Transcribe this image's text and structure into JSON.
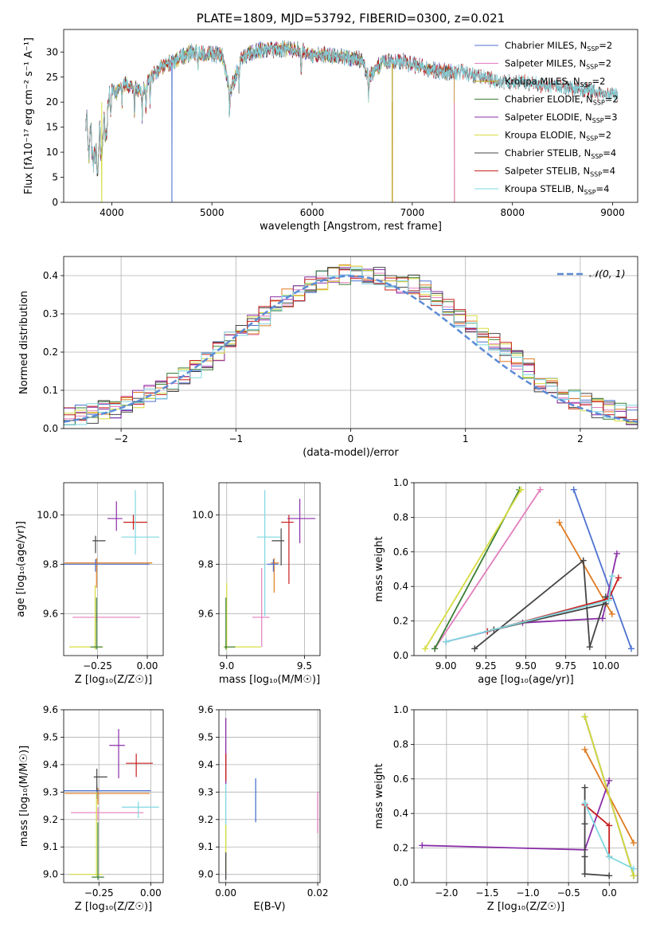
{
  "chart_data": [
    {
      "id": "spectrum",
      "type": "line",
      "title": "PLATE=1809, MJD=53792, FIBERID=0300, z=0.021",
      "xlabel": "wavelength [Angstrom, rest frame]",
      "ylabel": "Flux [fλ10⁻¹⁷ erg cm⁻² s⁻¹ A⁻¹]",
      "xlim": [
        3520,
        9250
      ],
      "ylim": [
        0,
        34.5
      ],
      "xticks": [
        4000,
        5000,
        6000,
        7000,
        8000,
        9000
      ],
      "yticks": [
        0,
        5,
        10,
        15,
        20,
        25,
        30
      ],
      "grid": false,
      "legend_position": "top-right",
      "spectrum_anchor_points": {
        "x": [
          3740,
          3800,
          3850,
          3900,
          3950,
          4000,
          4050,
          4100,
          4200,
          4300,
          4400,
          4500,
          4600,
          4700,
          4800,
          5000,
          5100,
          5180,
          5300,
          5500,
          5700,
          5900,
          6000,
          6100,
          6300,
          6500,
          6560,
          6700,
          6900,
          7100,
          7300,
          7500,
          7700,
          7900,
          8100,
          8300,
          8500,
          8700,
          8900,
          9000,
          9050
        ],
        "y": [
          14,
          12,
          9,
          13,
          17,
          23,
          22,
          24,
          23,
          22,
          25,
          27,
          28,
          29,
          30,
          29.5,
          29.5,
          22,
          29,
          30.5,
          30.5,
          30.5,
          29,
          29.5,
          29,
          28.5,
          25,
          28,
          28,
          27,
          26,
          26,
          25,
          24,
          24,
          23.5,
          23,
          22.5,
          22,
          21.5,
          21
        ]
      },
      "dropouts": [
        {
          "series": "Chabrier MILES, N_SSP=2",
          "x": 4600
        },
        {
          "series": "Kroupa MILES, N_SSP=2",
          "x": 6800
        },
        {
          "series": "Salpeter MILES, N_SSP=2",
          "x": 7420
        },
        {
          "series": "Kroupa ELODIE, N_SSP=2",
          "x": 3900
        }
      ],
      "series": [
        {
          "legend": "Chabrier MILES, N",
          "sub": "SSP",
          "suffix": "=2",
          "color": "#4c72d0",
          "end": 7420
        },
        {
          "legend": "Salpeter MILES, N",
          "sub": "SSP",
          "suffix": "=2",
          "color": "#e37dbd",
          "end": 7420
        },
        {
          "legend": "Kroupa MILES, N",
          "sub": "SSP",
          "suffix": "=2",
          "color": "#c39a06",
          "end": 7420
        },
        {
          "legend": "Chabrier ELODIE, N",
          "sub": "SSP",
          "suffix": "=2",
          "color": "#3a7e34",
          "end": 6800
        },
        {
          "legend": "Salpeter ELODIE, N",
          "sub": "SSP",
          "suffix": "=3",
          "color": "#8a2fa8",
          "end": 6800
        },
        {
          "legend": "Kroupa ELODIE, N",
          "sub": "SSP",
          "suffix": "=2",
          "color": "#d6dd3e",
          "end": 6800
        },
        {
          "legend": "Chabrier STELIB, N",
          "sub": "SSP",
          "suffix": "=4",
          "color": "#444444",
          "end": 9050
        },
        {
          "legend": "Salpeter STELIB, N",
          "sub": "SSP",
          "suffix": "=4",
          "color": "#c81e1e",
          "end": 9050
        },
        {
          "legend": "Kroupa STELIB, N",
          "sub": "SSP",
          "suffix": "=4",
          "color": "#7fd8e0",
          "end": 9050
        }
      ]
    },
    {
      "id": "residuals",
      "type": "line",
      "xlabel": "(data-model)/error",
      "ylabel": "Normed distribution",
      "xlim": [
        -2.5,
        2.5
      ],
      "ylim": [
        0,
        0.45
      ],
      "xticks": [
        -2,
        -1,
        0,
        1,
        2
      ],
      "xtick_labels": [
        "−2",
        "−1",
        "0",
        "1",
        "2"
      ],
      "yticks": [
        0.0,
        0.1,
        0.2,
        0.3,
        0.4
      ],
      "ytick_labels": [
        "0.0",
        "0.1",
        "0.2",
        "0.3",
        "0.4"
      ],
      "grid": true,
      "legend_position": "top-right",
      "legend_label": "𝒩(0, 1)",
      "gaussian": {
        "mean": 0,
        "sigma": 1,
        "color": "#5b8bd6"
      },
      "bin_width": 0.1,
      "series_colors": [
        "#4c72d0",
        "#e37dbd",
        "#e07b20",
        "#3a7e34",
        "#8a2fa8",
        "#d6dd3e",
        "#444444",
        "#c81e1e",
        "#7fd8e0"
      ]
    },
    {
      "id": "age_vs_Z",
      "type": "scatter",
      "xlabel": "Z [log₁₀(Z/Z☉)]",
      "ylabel": "age  [log₁₀(age/yr)]",
      "xlim": [
        -0.42,
        0.08
      ],
      "ylim": [
        9.43,
        10.13
      ],
      "xticks": [
        -0.25,
        0.0
      ],
      "xtick_labels": [
        "−0.25",
        "0.00"
      ],
      "yticks": [
        9.6,
        9.8,
        10.0
      ],
      "ytick_labels": [
        "9.6",
        "9.8",
        "10.0"
      ],
      "grid": true,
      "points": [
        {
          "x": -0.255,
          "y": 9.805,
          "xerr": [
            0.16,
            0.28
          ],
          "yerr": [
            0.1,
            0.02
          ],
          "color": "#e07b20"
        },
        {
          "x": -0.26,
          "y": 9.8,
          "xerr": [
            0.16,
            0.27
          ],
          "yerr": [
            0.03,
            0.02
          ],
          "color": "#4c72d0"
        },
        {
          "x": -0.255,
          "y": 9.585,
          "xerr": [
            0.12,
            0.22
          ],
          "yerr": [
            0.02,
            0.02
          ],
          "color": "#e37dbd"
        },
        {
          "x": -0.262,
          "y": 9.465,
          "xerr": [
            0.13,
            0.04
          ],
          "yerr": [
            0.01,
            0.25
          ],
          "color": "#d6dd3e"
        },
        {
          "x": -0.255,
          "y": 9.465,
          "xerr": [
            0.03,
            0.03
          ],
          "yerr": [
            0.01,
            0.2
          ],
          "color": "#3a7e34"
        },
        {
          "x": -0.26,
          "y": 9.895,
          "xerr": [
            0.015,
            0.05
          ],
          "yerr": [
            0.05,
            0.02
          ],
          "color": "#444444"
        },
        {
          "x": -0.155,
          "y": 9.985,
          "xerr": [
            0.045,
            0.03
          ],
          "yerr": [
            0.05,
            0.07
          ],
          "color": "#8a2fa8"
        },
        {
          "x": -0.07,
          "y": 9.97,
          "xerr": [
            0.05,
            0.07
          ],
          "yerr": [
            0.03,
            0.03
          ],
          "color": "#c81e1e"
        },
        {
          "x": -0.06,
          "y": 9.91,
          "xerr": [
            0.07,
            0.12
          ],
          "yerr": [
            0.07,
            0.19
          ],
          "color": "#7fd8e0"
        }
      ]
    },
    {
      "id": "age_vs_mass",
      "type": "scatter",
      "xlabel": "mass [log₁₀(M/M☉)]",
      "xlim": [
        8.95,
        9.6
      ],
      "ylim": [
        9.43,
        10.13
      ],
      "xticks": [
        9.0,
        9.5
      ],
      "xtick_labels": [
        "9.0",
        "9.5"
      ],
      "yticks": [
        9.6,
        9.8,
        10.0
      ],
      "ytick_labels": [
        "9.6",
        "9.8",
        "10.0"
      ],
      "grid": true,
      "points": [
        {
          "x": 9.305,
          "y": 9.805,
          "xerr": [
            0.02,
            0.03
          ],
          "yerr": [
            0.12,
            0.02
          ],
          "color": "#e07b20"
        },
        {
          "x": 9.3,
          "y": 9.8,
          "xerr": [
            0.04,
            0.03
          ],
          "yerr": [
            0.03,
            0.02
          ],
          "color": "#4c72d0"
        },
        {
          "x": 9.225,
          "y": 9.585,
          "xerr": [
            0.06,
            0.05
          ],
          "yerr": [
            0.12,
            0.2
          ],
          "color": "#e37dbd"
        },
        {
          "x": 9.0,
          "y": 9.465,
          "xerr": [
            0.02,
            0.22
          ],
          "yerr": [
            0.01,
            0.26
          ],
          "color": "#d6dd3e"
        },
        {
          "x": 8.995,
          "y": 9.465,
          "xerr": [
            0.01,
            0.06
          ],
          "yerr": [
            0.01,
            0.2
          ],
          "color": "#3a7e34"
        },
        {
          "x": 9.35,
          "y": 9.895,
          "xerr": [
            0.06,
            0.02
          ],
          "yerr": [
            0.1,
            0.05
          ],
          "color": "#444444"
        },
        {
          "x": 9.47,
          "y": 9.985,
          "xerr": [
            0.08,
            0.1
          ],
          "yerr": [
            0.1,
            0.08
          ],
          "color": "#8a2fa8"
        },
        {
          "x": 9.4,
          "y": 9.97,
          "xerr": [
            0.05,
            0.03
          ],
          "yerr": [
            0.25,
            0.03
          ],
          "color": "#c81e1e"
        },
        {
          "x": 9.245,
          "y": 9.91,
          "xerr": [
            0.05,
            0.1
          ],
          "yerr": [
            0.32,
            0.19
          ],
          "color": "#7fd8e0"
        }
      ]
    },
    {
      "id": "massweight_vs_age",
      "type": "line",
      "xlabel": "age  [log₁₀(age/yr)]",
      "ylabel": "mass weight",
      "xlim": [
        8.8,
        10.2
      ],
      "ylim": [
        0.0,
        1.0
      ],
      "xticks": [
        9.0,
        9.25,
        9.5,
        9.75,
        10.0
      ],
      "xtick_labels": [
        "9.00",
        "9.25",
        "9.50",
        "9.75",
        "10.00"
      ],
      "yticks": [
        0.0,
        0.2,
        0.4,
        0.6,
        0.8,
        1.0
      ],
      "ytick_labels": [
        "0.0",
        "0.2",
        "0.4",
        "0.6",
        "0.8",
        "1.0"
      ],
      "grid": true,
      "series": [
        {
          "color": "#4c72d0",
          "x": [
            9.8,
            10.16
          ],
          "y": [
            0.96,
            0.04
          ]
        },
        {
          "color": "#e37dbd",
          "x": [
            8.93,
            9.59
          ],
          "y": [
            0.04,
            0.96
          ]
        },
        {
          "color": "#e07b20",
          "x": [
            9.71,
            10.04
          ],
          "y": [
            0.77,
            0.24
          ]
        },
        {
          "color": "#3a7e34",
          "x": [
            8.93,
            9.46
          ],
          "y": [
            0.04,
            0.96
          ]
        },
        {
          "color": "#8a2fa8",
          "x": [
            9.0,
            9.48,
            9.98,
            10.07
          ],
          "y": [
            0.08,
            0.19,
            0.215,
            0.59
          ]
        },
        {
          "color": "#d6dd3e",
          "x": [
            8.87,
            9.47
          ],
          "y": [
            0.04,
            0.96
          ]
        },
        {
          "color": "#444444",
          "x": [
            9.18,
            9.86,
            9.9,
            10.0,
            10.0,
            9.3
          ],
          "y": [
            0.04,
            0.55,
            0.05,
            0.34,
            0.3,
            0.15
          ]
        },
        {
          "color": "#c81e1e",
          "x": [
            9.26,
            10.02,
            10.08
          ],
          "y": [
            0.14,
            0.33,
            0.45
          ]
        },
        {
          "color": "#7fd8e0",
          "x": [
            9.0,
            10.02,
            10.04
          ],
          "y": [
            0.08,
            0.32,
            0.46
          ]
        }
      ]
    },
    {
      "id": "mass_vs_Z",
      "type": "scatter",
      "xlabel": "Z [log₁₀(Z/Z☉)]",
      "ylabel": "mass [log₁₀(M/M☉)]",
      "xlim": [
        -0.42,
        0.06
      ],
      "ylim": [
        8.97,
        9.6
      ],
      "xticks": [
        -0.25,
        0.0
      ],
      "xtick_labels": [
        "−0.25",
        "0.00"
      ],
      "yticks": [
        9.0,
        9.1,
        9.2,
        9.3,
        9.4,
        9.5,
        9.6
      ],
      "ytick_labels": [
        "9.0",
        "9.1",
        "9.2",
        "9.3",
        "9.4",
        "9.5",
        "9.6"
      ],
      "grid": true,
      "points": [
        {
          "x": -0.255,
          "y": 9.295,
          "xerr": [
            0.16,
            0.25
          ],
          "yerr": [
            0.04,
            0.02
          ],
          "color": "#e07b20"
        },
        {
          "x": -0.26,
          "y": 9.305,
          "xerr": [
            0.16,
            0.26
          ],
          "yerr": [
            0.03,
            0.02
          ],
          "color": "#4c72d0"
        },
        {
          "x": -0.255,
          "y": 9.225,
          "xerr": [
            0.13,
            0.22
          ],
          "yerr": [
            0.03,
            0.02
          ],
          "color": "#e37dbd"
        },
        {
          "x": -0.262,
          "y": 9.0,
          "xerr": [
            0.13,
            0.03
          ],
          "yerr": [
            0.01,
            0.3
          ],
          "color": "#d6dd3e"
        },
        {
          "x": -0.255,
          "y": 8.99,
          "xerr": [
            0.03,
            0.03
          ],
          "yerr": [
            0.01,
            0.2
          ],
          "color": "#3a7e34"
        },
        {
          "x": -0.26,
          "y": 9.355,
          "xerr": [
            0.015,
            0.05
          ],
          "yerr": [
            0.05,
            0.03
          ],
          "color": "#444444"
        },
        {
          "x": -0.155,
          "y": 9.47,
          "xerr": [
            0.045,
            0.03
          ],
          "yerr": [
            0.12,
            0.06
          ],
          "color": "#8a2fa8"
        },
        {
          "x": -0.07,
          "y": 9.405,
          "xerr": [
            0.05,
            0.08
          ],
          "yerr": [
            0.05,
            0.035
          ],
          "color": "#c81e1e"
        },
        {
          "x": -0.06,
          "y": 9.245,
          "xerr": [
            0.08,
            0.1
          ],
          "yerr": [
            0.04,
            0.02
          ],
          "color": "#7fd8e0"
        }
      ]
    },
    {
      "id": "mass_vs_ebv",
      "type": "scatter",
      "xlabel": "E(B-V)",
      "xlim": [
        -0.0015,
        0.0205
      ],
      "ylim": [
        8.97,
        9.6
      ],
      "xticks": [
        0.0,
        0.02
      ],
      "xtick_labels": [
        "0.00",
        "0.02"
      ],
      "yticks": [
        9.0,
        9.1,
        9.2,
        9.3,
        9.4,
        9.5,
        9.6
      ],
      "ytick_labels": [
        "9.0",
        "9.1",
        "9.2",
        "9.3",
        "9.4",
        "9.5",
        "9.6"
      ],
      "grid": true,
      "segments": [
        {
          "x": 0.0,
          "y0": 9.33,
          "y1": 9.57,
          "color": "#8a2fa8"
        },
        {
          "x": 0.0,
          "y0": 9.34,
          "y1": 9.44,
          "color": "#c81e1e"
        },
        {
          "x": 0.0,
          "y0": 9.1,
          "y1": 9.33,
          "color": "#7fd8e0"
        },
        {
          "x": 0.0,
          "y0": 9.0,
          "y1": 9.18,
          "color": "#d6dd3e"
        },
        {
          "x": 0.0,
          "y0": 8.98,
          "y1": 9.08,
          "color": "#444444"
        },
        {
          "x": 0.0065,
          "y0": 9.19,
          "y1": 9.35,
          "color": "#4c72d0"
        },
        {
          "x": 0.02,
          "y0": 9.15,
          "y1": 9.3,
          "color": "#e37dbd"
        }
      ]
    },
    {
      "id": "massweight_vs_Z",
      "type": "line",
      "xlabel": "Z [log₁₀(Z/Z☉)]",
      "ylabel": "mass weight",
      "xlim": [
        -2.4,
        0.35
      ],
      "ylim": [
        0.0,
        1.0
      ],
      "xticks": [
        -2.0,
        -1.5,
        -1.0,
        -0.5,
        0.0
      ],
      "xtick_labels": [
        "−2.0",
        "−1.5",
        "−1.0",
        "−0.5",
        "0.0"
      ],
      "yticks": [
        0.0,
        0.2,
        0.4,
        0.6,
        0.8,
        1.0
      ],
      "ytick_labels": [
        "0.0",
        "0.2",
        "0.4",
        "0.6",
        "0.8",
        "1.0"
      ],
      "grid": true,
      "series": [
        {
          "color": "#4c72d0",
          "x": [
            -0.3,
            0.3
          ],
          "y": [
            0.96,
            0.04
          ]
        },
        {
          "color": "#e37dbd",
          "x": [
            -0.3,
            0.3
          ],
          "y": [
            0.96,
            0.04
          ]
        },
        {
          "color": "#e07b20",
          "x": [
            -0.3,
            0.3
          ],
          "y": [
            0.77,
            0.23
          ]
        },
        {
          "color": "#3a7e34",
          "x": [
            -0.3,
            0.3
          ],
          "y": [
            0.96,
            0.04
          ]
        },
        {
          "color": "#8a2fa8",
          "x": [
            -2.3,
            -0.3,
            0.0
          ],
          "y": [
            0.215,
            0.19,
            0.59
          ]
        },
        {
          "color": "#d6dd3e",
          "x": [
            -0.3,
            0.3
          ],
          "y": [
            0.96,
            0.04
          ]
        },
        {
          "color": "#444444",
          "x": [
            -0.3,
            -0.3,
            -0.3,
            -0.3,
            0.0
          ],
          "y": [
            0.55,
            0.34,
            0.15,
            0.05,
            0.04
          ]
        },
        {
          "color": "#c81e1e",
          "x": [
            -0.3,
            0.0,
            0.0
          ],
          "y": [
            0.45,
            0.33,
            0.15
          ]
        },
        {
          "color": "#7fd8e0",
          "x": [
            -0.3,
            0.0,
            0.3
          ],
          "y": [
            0.46,
            0.15,
            0.08
          ]
        }
      ]
    }
  ]
}
